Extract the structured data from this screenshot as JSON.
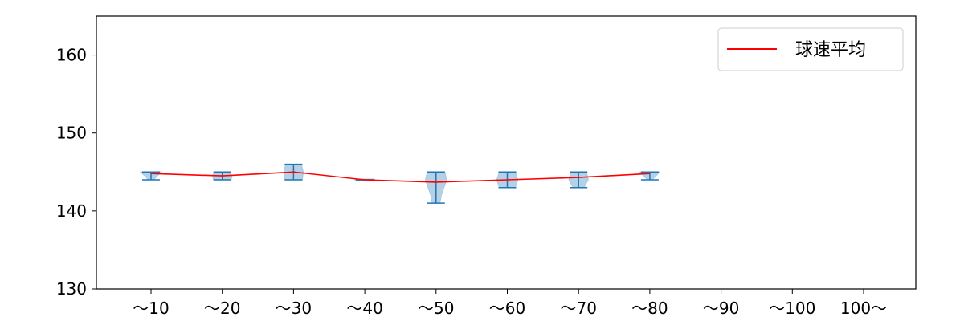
{
  "chart_data": {
    "type": "violin",
    "categories": [
      "〜10",
      "〜20",
      "〜30",
      "〜40",
      "〜50",
      "〜60",
      "〜70",
      "〜80",
      "〜90",
      "〜100",
      "100〜"
    ],
    "ylim": [
      130,
      165
    ],
    "yticks": [
      "130",
      "140",
      "150",
      "160"
    ],
    "legend": {
      "label": "球速平均",
      "position": "top-right"
    },
    "series": [
      {
        "name": "球速平均",
        "type": "line",
        "color": "#ff0000",
        "values": [
          144.8,
          144.5,
          145.0,
          144.0,
          143.7,
          144.0,
          144.3,
          144.8,
          null,
          null,
          null
        ]
      }
    ],
    "distributions": [
      {
        "category": "〜10",
        "min": 144,
        "max": 145,
        "width_profile": [
          [
            144,
            0.15
          ],
          [
            144.5,
            0.35
          ],
          [
            145,
            0.6
          ]
        ]
      },
      {
        "category": "〜20",
        "min": 144,
        "max": 145,
        "width_profile": [
          [
            144,
            0.5
          ],
          [
            144.5,
            0.55
          ],
          [
            145,
            0.45
          ]
        ]
      },
      {
        "category": "〜30",
        "min": 144,
        "max": 146,
        "width_profile": [
          [
            144,
            0.5
          ],
          [
            145,
            0.55
          ],
          [
            146,
            0.45
          ]
        ]
      },
      {
        "category": "〜40",
        "min": 144,
        "max": 144,
        "width_profile": [
          [
            144,
            0.55
          ]
        ]
      },
      {
        "category": "〜50",
        "min": 141,
        "max": 145,
        "width_profile": [
          [
            141,
            0.22
          ],
          [
            142,
            0.3
          ],
          [
            143,
            0.45
          ],
          [
            144,
            0.6
          ],
          [
            145,
            0.5
          ]
        ]
      },
      {
        "category": "〜60",
        "min": 143,
        "max": 145,
        "width_profile": [
          [
            143,
            0.45
          ],
          [
            144,
            0.6
          ],
          [
            145,
            0.45
          ]
        ]
      },
      {
        "category": "〜70",
        "min": 143,
        "max": 145,
        "width_profile": [
          [
            143,
            0.3
          ],
          [
            144,
            0.55
          ],
          [
            145,
            0.45
          ]
        ]
      },
      {
        "category": "〜80",
        "min": 144,
        "max": 145,
        "width_profile": [
          [
            144,
            0.12
          ],
          [
            144.5,
            0.35
          ],
          [
            145,
            0.55
          ]
        ]
      }
    ],
    "colors": {
      "violin_fill": "#a9c8e2",
      "whisker": "#1f77b4",
      "mean_line": "#ff0000"
    }
  }
}
